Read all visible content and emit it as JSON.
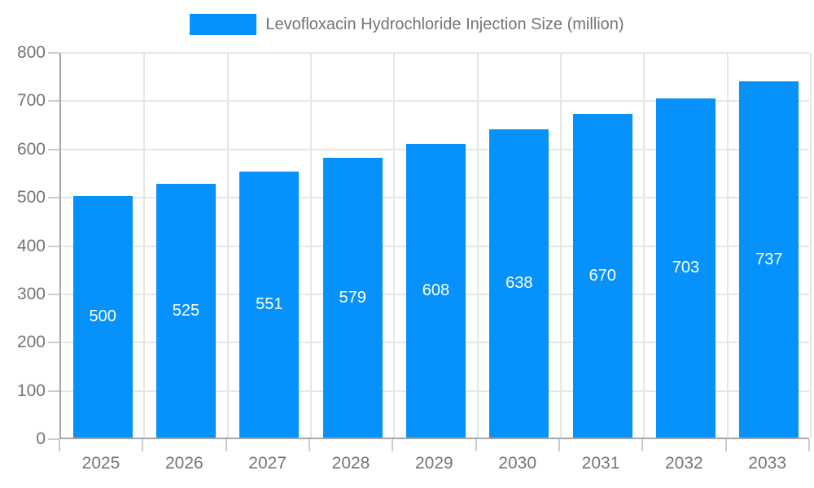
{
  "chart_data": {
    "type": "bar",
    "title": "Levofloxacin Hydrochloride Injection Size (million)",
    "categories": [
      "2025",
      "2026",
      "2027",
      "2028",
      "2029",
      "2030",
      "2031",
      "2032",
      "2033"
    ],
    "values": [
      500,
      525,
      551,
      579,
      608,
      638,
      670,
      703,
      737
    ],
    "xlabel": "",
    "ylabel": "",
    "ylim": [
      0,
      800
    ],
    "ytick_step": 100,
    "ytick_labels": [
      "0",
      "100",
      "200",
      "300",
      "400",
      "500",
      "600",
      "700",
      "800"
    ],
    "grid": true,
    "legend_position": "top-center",
    "value_labels_shown": true,
    "colors": {
      "bar": "#0692fa",
      "grid": "#e6e6e6",
      "axis": "#a6a6a6",
      "text": "#757575",
      "value_label": "#ffffff",
      "background": "#ffffff"
    }
  }
}
